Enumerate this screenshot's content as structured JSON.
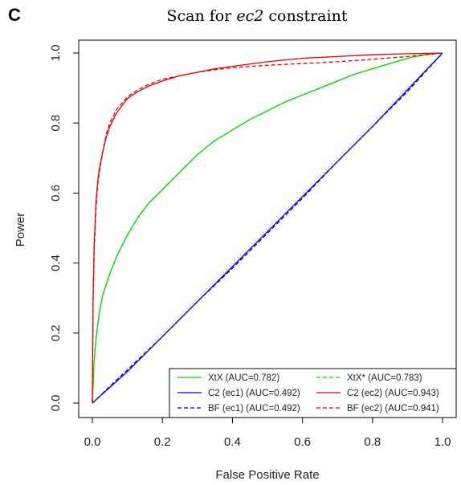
{
  "panel_letter": "C",
  "chart_data": {
    "type": "line",
    "title_prefix": "Scan for ",
    "title_italic": "ec2",
    "title_suffix": " constraint",
    "xlabel": "False Positive Rate",
    "ylabel": "Power",
    "xlim": [
      0,
      1
    ],
    "ylim": [
      0,
      1
    ],
    "xticks": [
      0.0,
      0.2,
      0.4,
      0.6,
      0.8,
      1.0
    ],
    "yticks": [
      0.0,
      0.2,
      0.4,
      0.6,
      0.8,
      1.0
    ],
    "xtick_labels": [
      "0.0",
      "0.2",
      "0.4",
      "0.6",
      "0.8",
      "1.0"
    ],
    "ytick_labels": [
      "0.0",
      "0.2",
      "0.4",
      "0.6",
      "0.8",
      "1.0"
    ],
    "grid": false,
    "diagonal_reference": true,
    "legend_position": "bottom-right",
    "series": [
      {
        "name": "XtX (AUC=0.782)",
        "color": "#00dd00",
        "dash": "solid",
        "x": [
          0,
          0.005,
          0.01,
          0.02,
          0.03,
          0.05,
          0.07,
          0.1,
          0.13,
          0.16,
          0.2,
          0.25,
          0.3,
          0.35,
          0.4,
          0.45,
          0.5,
          0.55,
          0.6,
          0.65,
          0.7,
          0.75,
          0.8,
          0.85,
          0.9,
          0.95,
          1.0
        ],
        "y": [
          0,
          0.12,
          0.18,
          0.26,
          0.31,
          0.37,
          0.42,
          0.48,
          0.53,
          0.57,
          0.61,
          0.66,
          0.71,
          0.75,
          0.78,
          0.81,
          0.835,
          0.86,
          0.88,
          0.9,
          0.92,
          0.94,
          0.955,
          0.97,
          0.985,
          0.995,
          1.0
        ]
      },
      {
        "name": "XtX* (AUC=0.783)",
        "color": "#00dd00",
        "dash": "dashed",
        "x": [
          0,
          0.005,
          0.01,
          0.02,
          0.03,
          0.05,
          0.07,
          0.1,
          0.13,
          0.16,
          0.2,
          0.25,
          0.3,
          0.35,
          0.4,
          0.45,
          0.5,
          0.55,
          0.6,
          0.65,
          0.7,
          0.75,
          0.8,
          0.85,
          0.9,
          0.95,
          1.0
        ],
        "y": [
          0,
          0.12,
          0.18,
          0.26,
          0.31,
          0.37,
          0.42,
          0.48,
          0.53,
          0.57,
          0.61,
          0.66,
          0.71,
          0.75,
          0.78,
          0.81,
          0.835,
          0.86,
          0.88,
          0.9,
          0.92,
          0.94,
          0.955,
          0.97,
          0.985,
          0.995,
          1.0
        ]
      },
      {
        "name": "C2 (ec1) (AUC=0.492)",
        "color": "#0000ee",
        "dash": "solid",
        "x": [
          0,
          0.1,
          0.2,
          0.3,
          0.4,
          0.5,
          0.6,
          0.7,
          0.8,
          0.9,
          1.0
        ],
        "y": [
          0,
          0.09,
          0.19,
          0.29,
          0.39,
          0.49,
          0.59,
          0.69,
          0.79,
          0.895,
          1.0
        ]
      },
      {
        "name": "C2 (ec2) (AUC=0.943)",
        "color": "#ee0000",
        "dash": "solid",
        "x": [
          0,
          0.002,
          0.005,
          0.01,
          0.015,
          0.02,
          0.03,
          0.04,
          0.05,
          0.07,
          0.1,
          0.13,
          0.16,
          0.2,
          0.25,
          0.3,
          0.35,
          0.4,
          0.5,
          0.6,
          0.7,
          0.8,
          0.9,
          1.0
        ],
        "y": [
          0,
          0.3,
          0.45,
          0.57,
          0.63,
          0.67,
          0.72,
          0.76,
          0.79,
          0.83,
          0.87,
          0.89,
          0.905,
          0.92,
          0.935,
          0.945,
          0.955,
          0.962,
          0.975,
          0.985,
          0.99,
          0.995,
          0.998,
          1.0
        ]
      },
      {
        "name": "BF (ec1) (AUC=0.492)",
        "color": "#0000ee",
        "dash": "dashed",
        "x": [
          0,
          0.1,
          0.2,
          0.3,
          0.4,
          0.5,
          0.6,
          0.7,
          0.8,
          0.9,
          1.0
        ],
        "y": [
          0,
          0.095,
          0.19,
          0.29,
          0.385,
          0.485,
          0.585,
          0.69,
          0.79,
          0.89,
          1.0
        ]
      },
      {
        "name": "BF (ec2) (AUC=0.941)",
        "color": "#ee0000",
        "dash": "dashed",
        "x": [
          0,
          0.002,
          0.005,
          0.01,
          0.015,
          0.02,
          0.03,
          0.04,
          0.05,
          0.07,
          0.1,
          0.13,
          0.16,
          0.2,
          0.25,
          0.3,
          0.35,
          0.4,
          0.5,
          0.6,
          0.7,
          0.8,
          0.9,
          1.0
        ],
        "y": [
          0,
          0.28,
          0.43,
          0.55,
          0.62,
          0.66,
          0.72,
          0.77,
          0.8,
          0.84,
          0.875,
          0.895,
          0.91,
          0.925,
          0.935,
          0.945,
          0.952,
          0.958,
          0.965,
          0.97,
          0.975,
          0.982,
          0.99,
          1.0
        ]
      }
    ]
  }
}
